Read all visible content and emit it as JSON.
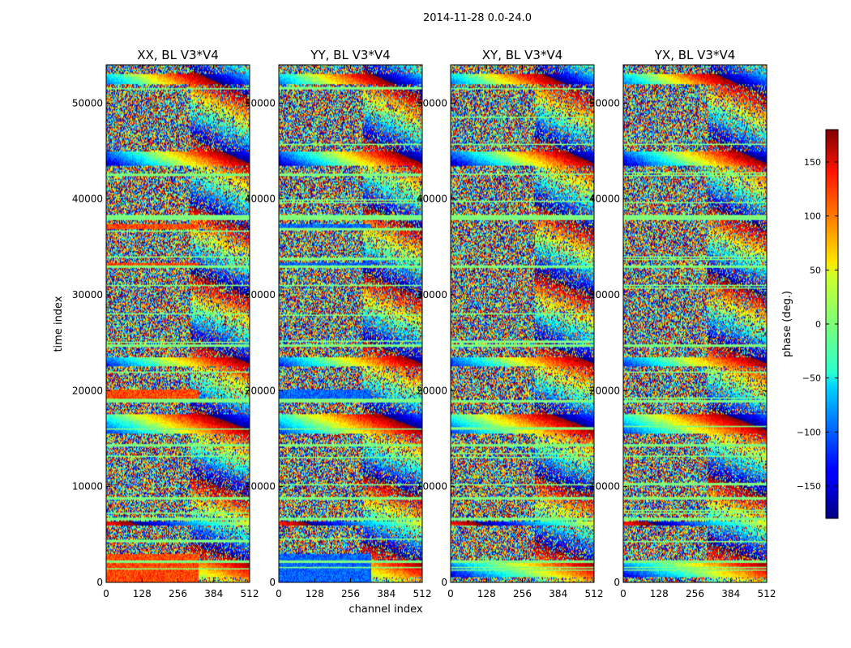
{
  "chart_data": {
    "type": "heatmap",
    "suptitle": "2014-11-28 0.0-24.0",
    "xlabel": "channel index",
    "ylabel": "time index",
    "xlim": [
      0,
      512
    ],
    "ylim": [
      0,
      54000
    ],
    "x_ticks": [
      0,
      128,
      256,
      384,
      512
    ],
    "y_ticks": [
      0,
      10000,
      20000,
      30000,
      40000,
      50000
    ],
    "panels": [
      {
        "title": "XX, BL V3*V4",
        "pol": "XX",
        "offset_deg": 110
      },
      {
        "title": "YY, BL V3*V4",
        "pol": "YY",
        "offset_deg": -100
      },
      {
        "title": "XY, BL V3*V4",
        "pol": "XY",
        "offset_deg": 0
      },
      {
        "title": "YX, BL V3*V4",
        "pol": "YX",
        "offset_deg": 0
      }
    ],
    "colorbar": {
      "label": "phase (deg.)",
      "range": [
        -180,
        180
      ],
      "ticks": [
        -150,
        -100,
        -50,
        0,
        50,
        100,
        150
      ],
      "colormap": "jet"
    },
    "flagged_time_bands": [
      [
        37800,
        38400
      ],
      [
        32800,
        33100
      ],
      [
        24600,
        24900
      ],
      [
        18700,
        19000
      ],
      [
        14200,
        14500
      ],
      [
        8600,
        8900
      ],
      [
        6500,
        6700
      ],
      [
        2000,
        2300
      ]
    ],
    "fringe_time_bands": [
      [
        52000,
        53000
      ],
      [
        43500,
        45000
      ],
      [
        22500,
        23500
      ],
      [
        15500,
        17500
      ],
      [
        6000,
        6300
      ],
      [
        500,
        2000
      ]
    ],
    "coherent_offset_bands": [
      [
        36900,
        37400
      ],
      [
        32900,
        33300
      ],
      [
        18900,
        20100
      ],
      [
        0,
        3000
      ]
    ]
  }
}
